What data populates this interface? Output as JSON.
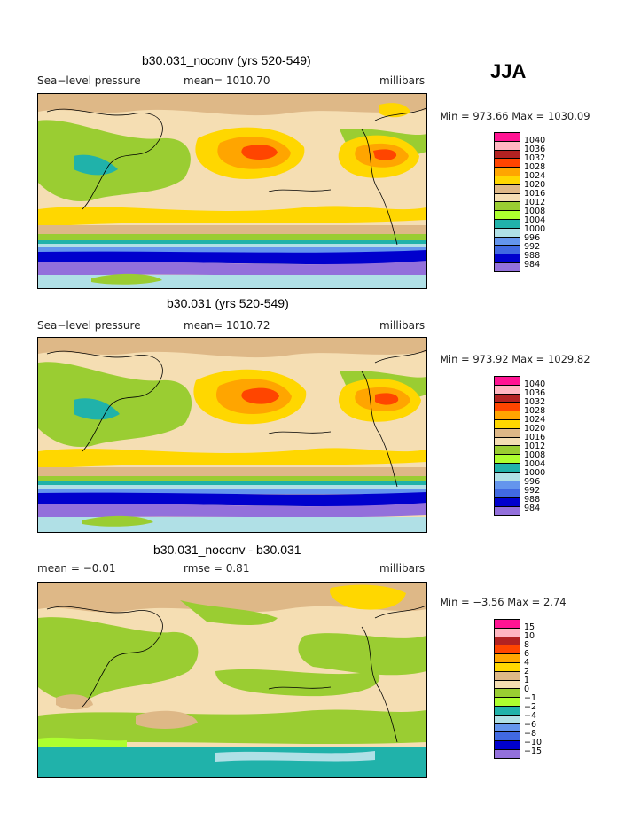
{
  "season": "JJA",
  "units": "millibars",
  "panels": [
    {
      "title": "b30.031_noconv (yrs 520-549)",
      "left_label": "Sea−level pressure",
      "mid_label": "mean= 1010.70",
      "units": "millibars",
      "minmax": "Min = 973.66 Max = 1030.09",
      "levels": [
        "1040",
        "1036",
        "1032",
        "1028",
        "1024",
        "1020",
        "1016",
        "1012",
        "1008",
        "1004",
        "1000",
        "996",
        "992",
        "988",
        "984"
      ]
    },
    {
      "title": "b30.031 (yrs 520-549)",
      "left_label": "Sea−level pressure",
      "mid_label": "mean= 1010.72",
      "units": "millibars",
      "minmax": "Min = 973.92 Max = 1029.82",
      "levels": [
        "1040",
        "1036",
        "1032",
        "1028",
        "1024",
        "1020",
        "1016",
        "1012",
        "1008",
        "1004",
        "1000",
        "996",
        "992",
        "988",
        "984"
      ]
    },
    {
      "title": "b30.031_noconv - b30.031",
      "left_label": "mean =   −0.01",
      "mid_label": "rmse =    0.81",
      "units": "millibars",
      "minmax": "Min =  −3.56 Max =    2.74",
      "levels": [
        "15",
        "10",
        "8",
        "6",
        "4",
        "2",
        "1",
        "0",
        "−1",
        "−2",
        "−4",
        "−6",
        "−8",
        "−10",
        "−15"
      ]
    }
  ],
  "colors": [
    "#ff1493",
    "#ffb6c1",
    "#b22222",
    "#ff4500",
    "#ffa500",
    "#ffd700",
    "#deb887",
    "#f5deb3",
    "#9acd32",
    "#adff2f",
    "#20b2aa",
    "#b0e0e6",
    "#6495ed",
    "#4169e1",
    "#0000cd",
    "#9370db"
  ]
}
